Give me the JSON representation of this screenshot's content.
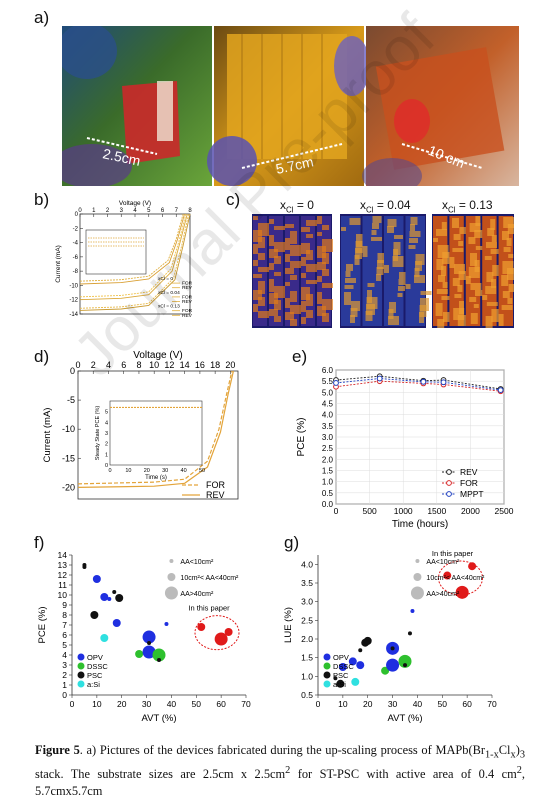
{
  "panel_labels": {
    "a": "a)",
    "b": "b)",
    "c": "c)",
    "d": "d)",
    "e": "e)",
    "f": "f)",
    "g": "g)"
  },
  "panel_a": {
    "photos": [
      {
        "size_label": "2.5cm",
        "palette": "red-green"
      },
      {
        "size_label": "5.7cm",
        "palette": "yellow"
      },
      {
        "size_label": "10 cm",
        "palette": "red-orange"
      }
    ]
  },
  "panel_c": {
    "titles": [
      "x<sub>Cl</sub> = 0",
      "x<sub>Cl</sub> = 0.04",
      "x<sub>Cl</sub> = 0.13"
    ]
  },
  "watermark": "Journal Pre-proof",
  "caption": {
    "bold": "Figure 5",
    "text_1": ". a) Pictures of the devices fabricated during the up-scaling process of MAPb(Br",
    "sub_1": "1-x",
    "text_2": "Cl",
    "sub_2": "x",
    "text_3": ")",
    "sub_3": "3",
    "line2_a": "stack. The substrate sizes are 2.5cm x 2.5cm",
    "sup_1": "2",
    "line2_b": " for ST-PSC with active area of 0.4 cm",
    "sup_2": "2",
    "line2_c": ", 5.7cmx5.7cm"
  },
  "chart_data": [
    {
      "id": "b",
      "type": "line",
      "title": "",
      "xlabel": "Voltage (V)",
      "ylabel": "Current (mA)",
      "xlim": [
        0,
        8
      ],
      "ylim": [
        -14,
        0
      ],
      "xticks": [
        0,
        1,
        2,
        3,
        4,
        5,
        6,
        7,
        8
      ],
      "yticks": [
        0,
        -2,
        -4,
        -6,
        -8,
        -10,
        -12,
        -14
      ],
      "series": [
        {
          "name": "x_Cl = 0 FOR",
          "values": [
            [
              0,
              -9.4
            ],
            [
              3,
              -9.2
            ],
            [
              5,
              -8.7
            ],
            [
              6.4,
              -6.5
            ],
            [
              7,
              -3.5
            ],
            [
              7.5,
              0
            ]
          ]
        },
        {
          "name": "x_Cl = 0 REV",
          "values": [
            [
              0,
              -9.8
            ],
            [
              3,
              -9.6
            ],
            [
              5,
              -9.1
            ],
            [
              6.5,
              -6.8
            ],
            [
              7.1,
              -3.5
            ],
            [
              7.6,
              0
            ]
          ]
        },
        {
          "name": "x_Cl = 0.04 FOR",
          "values": [
            [
              0,
              -11.6
            ],
            [
              3,
              -11.4
            ],
            [
              5,
              -10.9
            ],
            [
              6.6,
              -7.7
            ],
            [
              7.2,
              -3.8
            ],
            [
              7.7,
              0
            ]
          ]
        },
        {
          "name": "x_Cl = 0.04 REV",
          "values": [
            [
              0,
              -12.0
            ],
            [
              3,
              -11.8
            ],
            [
              5,
              -11.3
            ],
            [
              6.7,
              -8
            ],
            [
              7.3,
              -3.8
            ],
            [
              7.8,
              0
            ]
          ]
        },
        {
          "name": "x_Cl = 0.13 FOR",
          "values": [
            [
              0,
              -13.2
            ],
            [
              3,
              -13.0
            ],
            [
              5,
              -12.5
            ],
            [
              6.8,
              -9
            ],
            [
              7.4,
              -4.4
            ],
            [
              7.9,
              0
            ]
          ]
        },
        {
          "name": "x_Cl = 0.13 REV",
          "values": [
            [
              0,
              -13.5
            ],
            [
              3,
              -13.3
            ],
            [
              5,
              -12.8
            ],
            [
              6.9,
              -9.2
            ],
            [
              7.5,
              -4.4
            ],
            [
              8,
              0
            ]
          ]
        }
      ],
      "legend": [
        "x_Cl = 0",
        "FOR",
        "REV",
        "x_Cl = 0.04",
        "FOR",
        "REV",
        "x_Cl = 0.13",
        "FOR",
        "REV"
      ]
    },
    {
      "id": "d",
      "type": "line",
      "xlabel": "Voltage (V)",
      "ylabel": "Current (mA)",
      "xlim": [
        0,
        21
      ],
      "ylim": [
        -22,
        0
      ],
      "xticks": [
        0,
        2,
        4,
        6,
        8,
        10,
        12,
        14,
        16,
        18,
        20
      ],
      "yticks": [
        0,
        -5,
        -10,
        -15,
        -20
      ],
      "series": [
        {
          "name": "FOR",
          "values": [
            [
              0,
              -19.4
            ],
            [
              10,
              -19.1
            ],
            [
              14,
              -18.6
            ],
            [
              17,
              -15.5
            ],
            [
              18.5,
              -10
            ],
            [
              19.5,
              -4
            ],
            [
              20.2,
              0
            ]
          ]
        },
        {
          "name": "REV",
          "values": [
            [
              0,
              -20
            ],
            [
              10,
              -19.8
            ],
            [
              14,
              -19.3
            ],
            [
              17,
              -16.5
            ],
            [
              18.7,
              -10.5
            ],
            [
              19.7,
              -4
            ],
            [
              20.4,
              0
            ]
          ]
        }
      ],
      "inset": {
        "xlabel": "Time (s)",
        "ylabel": "Steady State PCE (%)",
        "xlim": [
          0,
          50
        ],
        "ylim": [
          0,
          6
        ],
        "xticks": [
          0,
          10,
          20,
          30,
          40,
          50
        ],
        "yticks": [
          0,
          1,
          2,
          3,
          4,
          5
        ],
        "value": 5.4
      }
    },
    {
      "id": "e",
      "type": "line",
      "xlabel": "Time (hours)",
      "ylabel": "PCE (%)",
      "xlim": [
        0,
        2500
      ],
      "ylim": [
        0,
        6
      ],
      "xticks": [
        0,
        500,
        1000,
        1500,
        2000,
        2500
      ],
      "yticks": [
        0,
        0.5,
        1,
        1.5,
        2,
        2.5,
        3,
        3.5,
        4,
        4.5,
        5,
        5.5,
        6
      ],
      "series": [
        {
          "name": "REV",
          "color": "#222222",
          "x": [
            0,
            650,
            1300,
            1600,
            2450
          ],
          "values": [
            5.55,
            5.72,
            5.52,
            5.55,
            5.15
          ]
        },
        {
          "name": "FOR",
          "color": "#d62728",
          "x": [
            0,
            650,
            1300,
            1600,
            2450
          ],
          "values": [
            5.25,
            5.5,
            5.4,
            5.35,
            5.05
          ]
        },
        {
          "name": "MPPT",
          "color": "#1f3fbf",
          "x": [
            0,
            650,
            1300,
            1600,
            2450
          ],
          "values": [
            5.42,
            5.62,
            5.47,
            5.45,
            5.1
          ]
        }
      ]
    },
    {
      "id": "f",
      "type": "scatter",
      "xlabel": "AVT (%)",
      "ylabel": "PCE (%)",
      "xlim": [
        0,
        70
      ],
      "ylim": [
        0,
        14
      ],
      "xticks": [
        0,
        10,
        20,
        30,
        40,
        50,
        60,
        70
      ],
      "yticks": [
        0,
        1,
        2,
        3,
        4,
        5,
        6,
        7,
        8,
        9,
        10,
        11,
        12,
        13,
        14
      ],
      "size_legend": [
        "AA<10cm²",
        "10cm²< AA<40cm²",
        "AA>40cm²"
      ],
      "annotation": "In this paper",
      "categories": [
        "OPV",
        "DSSC",
        "PSC",
        "a:Si"
      ],
      "points": [
        {
          "cat": "PSC",
          "x": 5,
          "y": 13.0,
          "s": 1
        },
        {
          "cat": "PSC",
          "x": 5,
          "y": 12.8,
          "s": 1
        },
        {
          "cat": "OPV",
          "x": 10,
          "y": 11.6,
          "s": 2
        },
        {
          "cat": "OPV",
          "x": 13,
          "y": 9.8,
          "s": 2
        },
        {
          "cat": "PSC",
          "x": 17,
          "y": 10.3,
          "s": 1
        },
        {
          "cat": "OPV",
          "x": 15,
          "y": 9.6,
          "s": 1
        },
        {
          "cat": "PSC",
          "x": 19,
          "y": 9.7,
          "s": 2
        },
        {
          "cat": "PSC",
          "x": 9,
          "y": 8.0,
          "s": 2
        },
        {
          "cat": "OPV",
          "x": 18,
          "y": 7.2,
          "s": 2
        },
        {
          "cat": "a:Si",
          "x": 13,
          "y": 5.7,
          "s": 2
        },
        {
          "cat": "OPV",
          "x": 31,
          "y": 5.8,
          "s": 3
        },
        {
          "cat": "OPV",
          "x": 38,
          "y": 7.1,
          "s": 1
        },
        {
          "cat": "DSSC",
          "x": 27,
          "y": 4.1,
          "s": 2
        },
        {
          "cat": "OPV",
          "x": 31,
          "y": 4.3,
          "s": 3
        },
        {
          "cat": "DSSC",
          "x": 35,
          "y": 4.0,
          "s": 3
        },
        {
          "cat": "PSC",
          "x": 35,
          "y": 3.5,
          "s": 1
        },
        {
          "cat": "PSC",
          "x": 31,
          "y": 5.2,
          "s": 1
        },
        {
          "cat": "PAPER",
          "x": 52,
          "y": 6.8,
          "s": 2
        },
        {
          "cat": "PAPER",
          "x": 60,
          "y": 5.6,
          "s": 3
        },
        {
          "cat": "PAPER",
          "x": 63,
          "y": 6.3,
          "s": 2
        }
      ]
    },
    {
      "id": "g",
      "type": "scatter",
      "xlabel": "AVT (%)",
      "ylabel": "LUE (%)",
      "xlim": [
        0,
        70
      ],
      "ylim": [
        0.5,
        4.25
      ],
      "xticks": [
        0,
        10,
        20,
        30,
        40,
        50,
        60,
        70
      ],
      "yticks": [
        0.5,
        1.0,
        1.5,
        2.0,
        2.5,
        3.0,
        3.5,
        4.0
      ],
      "size_legend": [
        "AA<10cm²",
        "10cm²< AA<40cm²",
        "AA>40cm²"
      ],
      "annotation": "In this paper",
      "categories": [
        "OPV",
        "DSSC",
        "PSC",
        "a:Si"
      ],
      "points": [
        {
          "cat": "PSC",
          "x": 7,
          "y": 0.95,
          "s": 1
        },
        {
          "cat": "PSC",
          "x": 9,
          "y": 0.8,
          "s": 2
        },
        {
          "cat": "OPV",
          "x": 10,
          "y": 1.25,
          "s": 2
        },
        {
          "cat": "OPV",
          "x": 14,
          "y": 1.4,
          "s": 2
        },
        {
          "cat": "a:Si",
          "x": 15,
          "y": 0.85,
          "s": 2
        },
        {
          "cat": "OPV",
          "x": 17,
          "y": 1.3,
          "s": 2
        },
        {
          "cat": "PSC",
          "x": 17,
          "y": 1.7,
          "s": 1
        },
        {
          "cat": "PSC",
          "x": 19,
          "y": 1.9,
          "s": 2
        },
        {
          "cat": "PSC",
          "x": 20,
          "y": 1.95,
          "s": 2
        },
        {
          "cat": "DSSC",
          "x": 27,
          "y": 1.15,
          "s": 2
        },
        {
          "cat": "OPV",
          "x": 30,
          "y": 1.75,
          "s": 3
        },
        {
          "cat": "PSC",
          "x": 30,
          "y": 1.75,
          "s": 1
        },
        {
          "cat": "OPV",
          "x": 30,
          "y": 1.3,
          "s": 3
        },
        {
          "cat": "DSSC",
          "x": 35,
          "y": 1.4,
          "s": 3
        },
        {
          "cat": "PSC",
          "x": 37,
          "y": 2.15,
          "s": 1
        },
        {
          "cat": "OPV",
          "x": 38,
          "y": 2.75,
          "s": 1
        },
        {
          "cat": "PSC",
          "x": 35,
          "y": 1.3,
          "s": 1
        },
        {
          "cat": "PAPER",
          "x": 52,
          "y": 3.7,
          "s": 2
        },
        {
          "cat": "PAPER",
          "x": 58,
          "y": 3.25,
          "s": 3
        },
        {
          "cat": "PAPER",
          "x": 62,
          "y": 3.95,
          "s": 2
        }
      ]
    }
  ]
}
